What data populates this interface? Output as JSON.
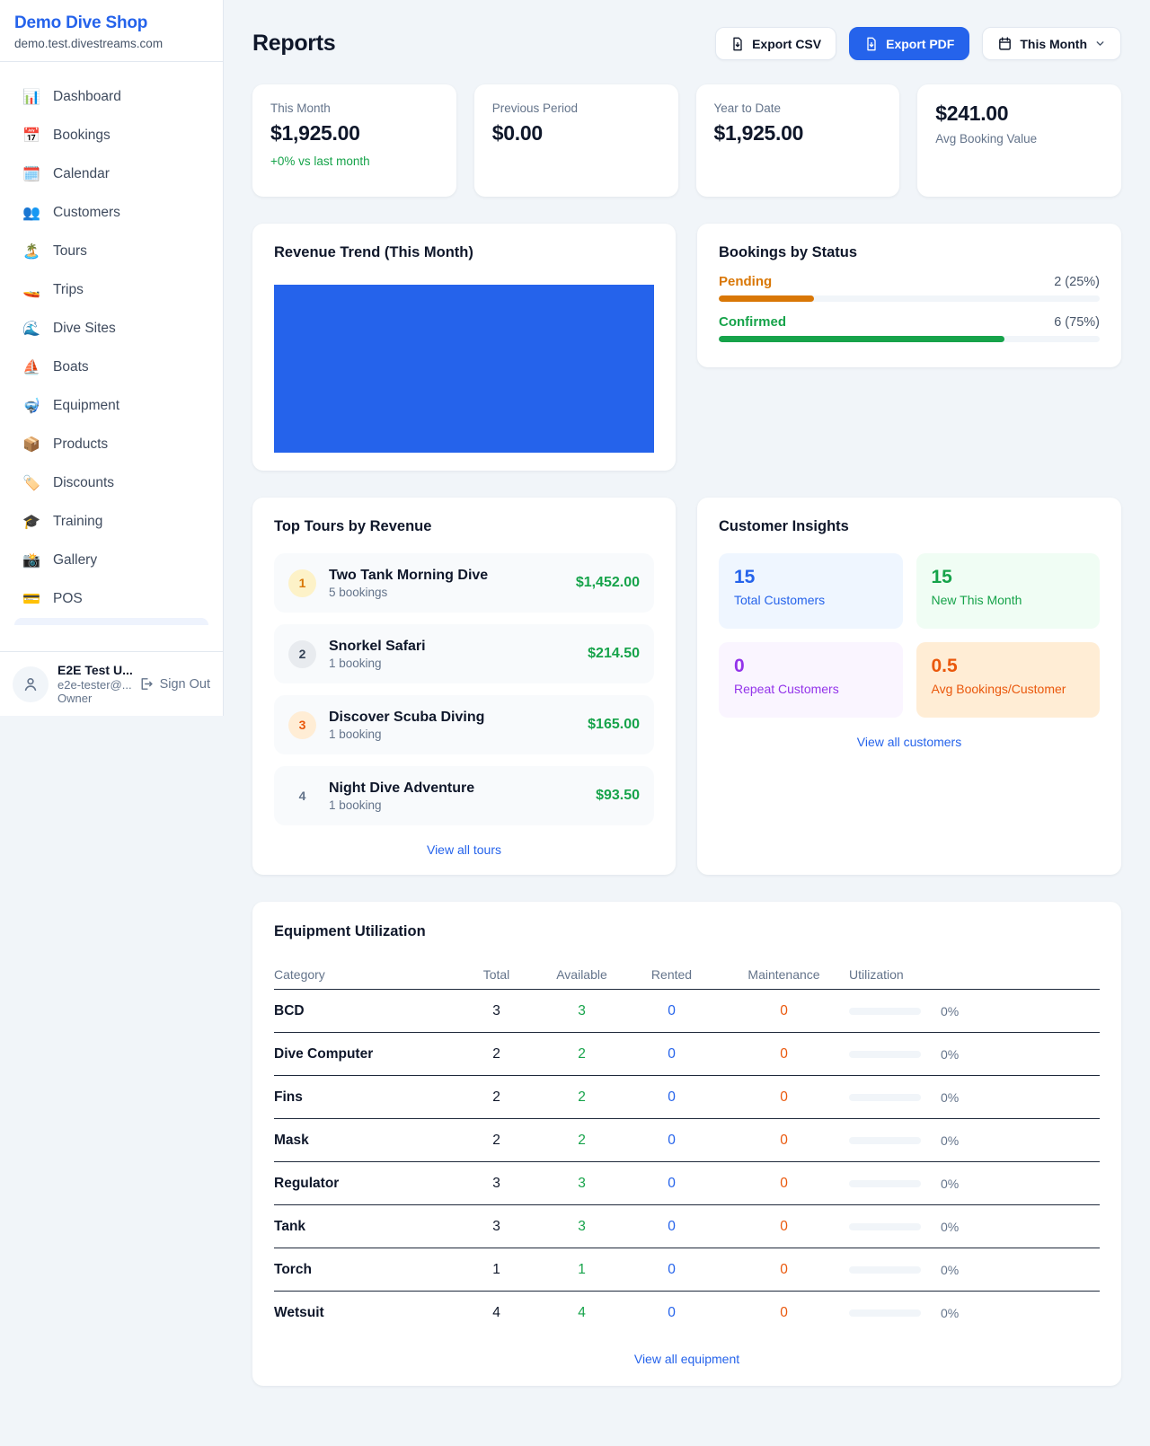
{
  "sidebar": {
    "shop_name": "Demo Dive Shop",
    "shop_domain": "demo.test.divestreams.com",
    "nav": [
      {
        "icon": "📊",
        "label": "Dashboard"
      },
      {
        "icon": "📅",
        "label": "Bookings"
      },
      {
        "icon": "🗓️",
        "label": "Calendar"
      },
      {
        "icon": "👥",
        "label": "Customers"
      },
      {
        "icon": "🏝️",
        "label": "Tours"
      },
      {
        "icon": "🚤",
        "label": "Trips"
      },
      {
        "icon": "🌊",
        "label": "Dive Sites"
      },
      {
        "icon": "⛵",
        "label": "Boats"
      },
      {
        "icon": "🤿",
        "label": "Equipment"
      },
      {
        "icon": "📦",
        "label": "Products"
      },
      {
        "icon": "🏷️",
        "label": "Discounts"
      },
      {
        "icon": "🎓",
        "label": "Training"
      },
      {
        "icon": "📸",
        "label": "Gallery"
      },
      {
        "icon": "💳",
        "label": "POS"
      }
    ],
    "user": {
      "name": "E2E Test U...",
      "email": "e2e-tester@...",
      "role": "Owner",
      "sign_out_label": "Sign Out"
    }
  },
  "header": {
    "title": "Reports",
    "export_csv_label": "Export CSV",
    "export_pdf_label": "Export PDF",
    "period_label": "This Month"
  },
  "stats": [
    {
      "label": "This Month",
      "value": "$1,925.00",
      "sub": "+0% vs last month"
    },
    {
      "label": "Previous Period",
      "value": "$0.00"
    },
    {
      "label": "Year to Date",
      "value": "$1,925.00"
    },
    {
      "label": "Avg Booking Value",
      "value": "$241.00"
    }
  ],
  "revenue_trend": {
    "title": "Revenue Trend (This Month)",
    "bar_color": "#2563eb"
  },
  "bookings_by_status": {
    "title": "Bookings by Status",
    "rows": [
      {
        "label": "Pending",
        "value_text": "2 (25%)",
        "count": 2,
        "pct": 25,
        "color": "#d97706"
      },
      {
        "label": "Confirmed",
        "value_text": "6 (75%)",
        "count": 6,
        "pct": 75,
        "color": "#16a34a"
      }
    ]
  },
  "top_tours": {
    "title": "Top Tours by Revenue",
    "rows": [
      {
        "rank": "1",
        "name": "Two Tank Morning Dive",
        "bookings": "5 bookings",
        "amount": "$1,452.00"
      },
      {
        "rank": "2",
        "name": "Snorkel Safari",
        "bookings": "1 booking",
        "amount": "$214.50"
      },
      {
        "rank": "3",
        "name": "Discover Scuba Diving",
        "bookings": "1 booking",
        "amount": "$165.00"
      },
      {
        "rank": "4",
        "name": "Night Dive Adventure",
        "bookings": "1 booking",
        "amount": "$93.50"
      }
    ],
    "view_all_label": "View all tours"
  },
  "customer_insights": {
    "title": "Customer Insights",
    "tiles": [
      {
        "value": "15",
        "label": "Total Customers",
        "color": "#2563eb"
      },
      {
        "value": "15",
        "label": "New This Month",
        "color": "#16a34a"
      },
      {
        "value": "0",
        "label": "Repeat Customers",
        "color": "#9333ea"
      },
      {
        "value": "0.5",
        "label": "Avg Bookings/Customer",
        "color": "#ea580c"
      }
    ],
    "view_all_label": "View all customers"
  },
  "equipment": {
    "title": "Equipment Utilization",
    "columns": [
      "Category",
      "Total",
      "Available",
      "Rented",
      "Maintenance",
      "Utilization"
    ],
    "rows": [
      {
        "category": "BCD",
        "total": "3",
        "available": "3",
        "rented": "0",
        "maintenance": "0",
        "utilization": "0%",
        "utilization_pct": 0
      },
      {
        "category": "Dive Computer",
        "total": "2",
        "available": "2",
        "rented": "0",
        "maintenance": "0",
        "utilization": "0%",
        "utilization_pct": 0
      },
      {
        "category": "Fins",
        "total": "2",
        "available": "2",
        "rented": "0",
        "maintenance": "0",
        "utilization": "0%",
        "utilization_pct": 0
      },
      {
        "category": "Mask",
        "total": "2",
        "available": "2",
        "rented": "0",
        "maintenance": "0",
        "utilization": "0%",
        "utilization_pct": 0
      },
      {
        "category": "Regulator",
        "total": "3",
        "available": "3",
        "rented": "0",
        "maintenance": "0",
        "utilization": "0%",
        "utilization_pct": 0
      },
      {
        "category": "Tank",
        "total": "3",
        "available": "3",
        "rented": "0",
        "maintenance": "0",
        "utilization": "0%",
        "utilization_pct": 0
      },
      {
        "category": "Torch",
        "total": "1",
        "available": "1",
        "rented": "0",
        "maintenance": "0",
        "utilization": "0%",
        "utilization_pct": 0
      },
      {
        "category": "Wetsuit",
        "total": "4",
        "available": "4",
        "rented": "0",
        "maintenance": "0",
        "utilization": "0%",
        "utilization_pct": 0
      }
    ],
    "view_all_label": "View all equipment"
  }
}
